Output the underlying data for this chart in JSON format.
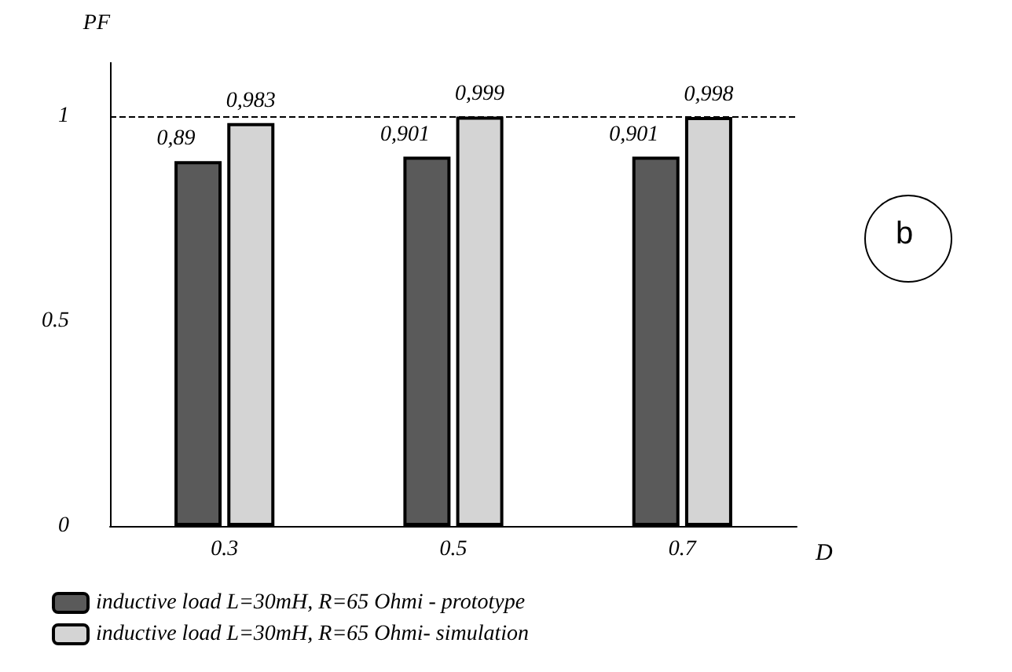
{
  "chart_data": {
    "type": "bar",
    "xlabel": "D",
    "ylabel": "PF",
    "categories": [
      "0.3",
      "0.5",
      "0.7"
    ],
    "series": [
      {
        "name": "inductive load L=30mH, R=65 Ohmi - prototype",
        "color": "#5a5a5a",
        "values": [
          0.89,
          0.901,
          0.901
        ],
        "value_labels": [
          "0,89",
          "0,901",
          "0,901"
        ]
      },
      {
        "name": "inductive load L=30mH, R=65 Ohmi- simulation",
        "color": "#d4d4d4",
        "values": [
          0.983,
          0.999,
          0.998
        ],
        "value_labels": [
          "0,983",
          "0,999",
          "0,998"
        ]
      }
    ],
    "ylim": [
      0,
      1.13
    ],
    "yticks": [
      0,
      0.5,
      1
    ],
    "grid": false,
    "legend": "bottom",
    "ref_lines": [
      {
        "axis": "y",
        "value": 1,
        "line_style": "dashed"
      }
    ],
    "annotations": [
      "b"
    ]
  }
}
